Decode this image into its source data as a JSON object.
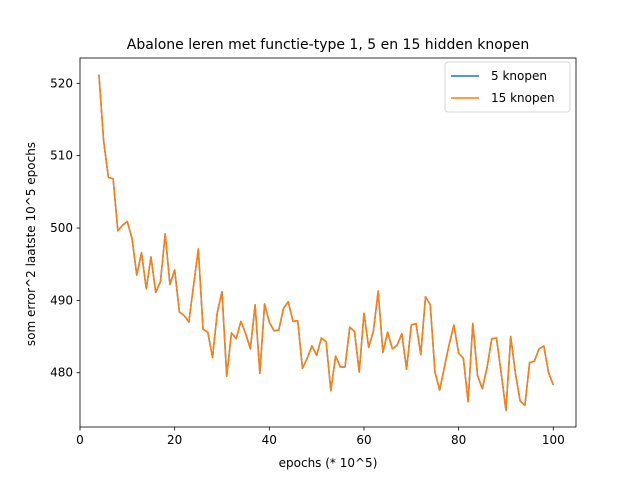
{
  "chart_data": {
    "type": "line",
    "title": "Abalone leren met functie-type 1, 5 en 15 hidden knopen",
    "xlabel": "epochs (* 10^5)",
    "ylabel": "som error^2 laatste 10^5 epochs",
    "xlim": [
      0,
      104.8
    ],
    "ylim": [
      472.5,
      523.5
    ],
    "xticks": [
      0,
      20,
      40,
      60,
      80,
      100
    ],
    "yticks": [
      480,
      490,
      500,
      510,
      520
    ],
    "legend_position": "top-right",
    "x": [
      4,
      5,
      6,
      7,
      8,
      9,
      10,
      11,
      12,
      13,
      14,
      15,
      16,
      17,
      18,
      19,
      20,
      21,
      22,
      23,
      24,
      25,
      26,
      27,
      28,
      29,
      30,
      31,
      32,
      33,
      34,
      35,
      36,
      37,
      38,
      39,
      40,
      41,
      42,
      43,
      44,
      45,
      46,
      47,
      48,
      49,
      50,
      51,
      52,
      53,
      54,
      55,
      56,
      57,
      58,
      59,
      60,
      61,
      62,
      63,
      64,
      65,
      66,
      67,
      68,
      69,
      70,
      71,
      72,
      73,
      74,
      75,
      76,
      77,
      78,
      79,
      80,
      81,
      82,
      83,
      84,
      85,
      86,
      87,
      88,
      89,
      90,
      91,
      92,
      93,
      94,
      95,
      96,
      97,
      98,
      99,
      100
    ],
    "series": [
      {
        "name": "5 knopen",
        "color": "#1f77b4",
        "values": [
          521.2,
          512.0,
          507.0,
          506.8,
          499.6,
          500.4,
          500.9,
          498.5,
          493.5,
          496.6,
          491.6,
          496.0,
          491.1,
          492.6,
          499.2,
          492.2,
          494.2,
          488.4,
          487.9,
          487.0,
          492.1,
          497.1,
          486.0,
          485.6,
          482.1,
          488.3,
          491.2,
          479.5,
          485.5,
          484.7,
          487.1,
          485.4,
          483.3,
          489.4,
          479.9,
          489.5,
          487.0,
          485.8,
          485.9,
          488.9,
          489.8,
          487.1,
          487.2,
          480.6,
          482.0,
          483.7,
          482.4,
          484.8,
          484.3,
          477.5,
          482.3,
          480.8,
          480.8,
          486.3,
          485.7,
          480.1,
          488.2,
          483.5,
          485.8,
          491.3,
          482.8,
          485.6,
          483.3,
          483.8,
          485.4,
          480.5,
          486.6,
          486.8,
          482.5,
          490.5,
          489.4,
          480.1,
          477.6,
          480.8,
          483.9,
          486.6,
          482.7,
          482.0,
          476.0,
          486.8,
          479.6,
          477.8,
          480.7,
          484.7,
          484.8,
          479.9,
          474.8,
          485.0,
          479.9,
          476.1,
          475.5,
          481.4,
          481.6,
          483.3,
          483.7,
          480.0,
          478.3
        ]
      },
      {
        "name": "15 knopen",
        "color": "#ff7f0e",
        "values": [
          521.2,
          512.0,
          507.0,
          506.8,
          499.6,
          500.4,
          500.9,
          498.5,
          493.5,
          496.6,
          491.6,
          496.0,
          491.1,
          492.6,
          499.2,
          492.2,
          494.2,
          488.4,
          487.9,
          487.0,
          492.1,
          497.1,
          486.0,
          485.6,
          482.1,
          488.3,
          491.2,
          479.5,
          485.5,
          484.7,
          487.1,
          485.4,
          483.3,
          489.4,
          479.9,
          489.5,
          487.0,
          485.8,
          485.9,
          488.9,
          489.8,
          487.1,
          487.2,
          480.6,
          482.0,
          483.7,
          482.4,
          484.8,
          484.3,
          477.5,
          482.3,
          480.8,
          480.8,
          486.3,
          485.7,
          480.1,
          488.2,
          483.5,
          485.8,
          491.3,
          482.8,
          485.6,
          483.3,
          483.8,
          485.4,
          480.5,
          486.6,
          486.8,
          482.5,
          490.5,
          489.4,
          480.1,
          477.6,
          480.8,
          483.9,
          486.6,
          482.7,
          482.0,
          476.0,
          486.8,
          479.6,
          477.8,
          480.7,
          484.7,
          484.8,
          479.9,
          474.8,
          485.0,
          479.9,
          476.1,
          475.5,
          481.4,
          481.6,
          483.3,
          483.7,
          480.0,
          478.3
        ]
      }
    ]
  }
}
